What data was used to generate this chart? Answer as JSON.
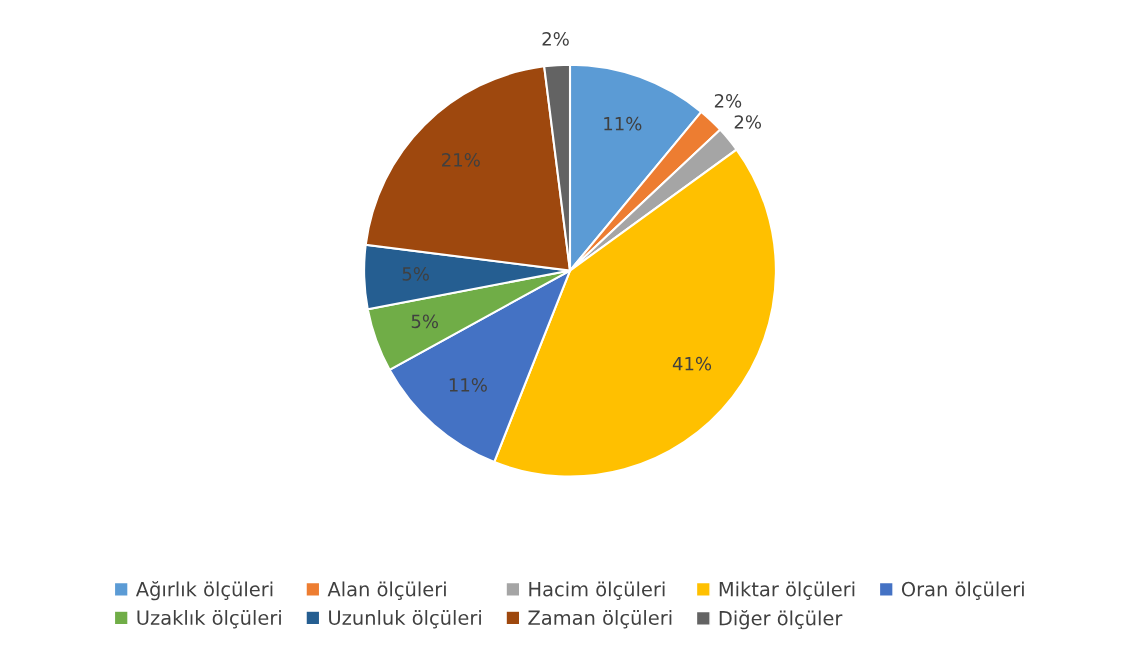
{
  "chart_data": {
    "type": "pie",
    "categories": [
      "Ağırlık ölçüleri",
      "Alan ölçüleri",
      "Hacim ölçüleri",
      "Miktar ölçüleri",
      "Oran ölçüleri",
      "Uzaklık ölçüleri",
      "Uzunluk ölçüleri",
      "Zaman ölçüleri",
      "Diğer ölçüler"
    ],
    "values": [
      11,
      2,
      2,
      41,
      11,
      5,
      5,
      21,
      2
    ],
    "value_labels": [
      "11%",
      "2%",
      "2%",
      "41%",
      "11%",
      "5%",
      "5%",
      "21%",
      "2%"
    ],
    "colors": [
      "#5b9bd5",
      "#ed7d31",
      "#a5a5a5",
      "#ffc000",
      "#4472c4",
      "#70ad47",
      "#255e91",
      "#9e480e",
      "#636363"
    ],
    "legend": "bottom"
  }
}
